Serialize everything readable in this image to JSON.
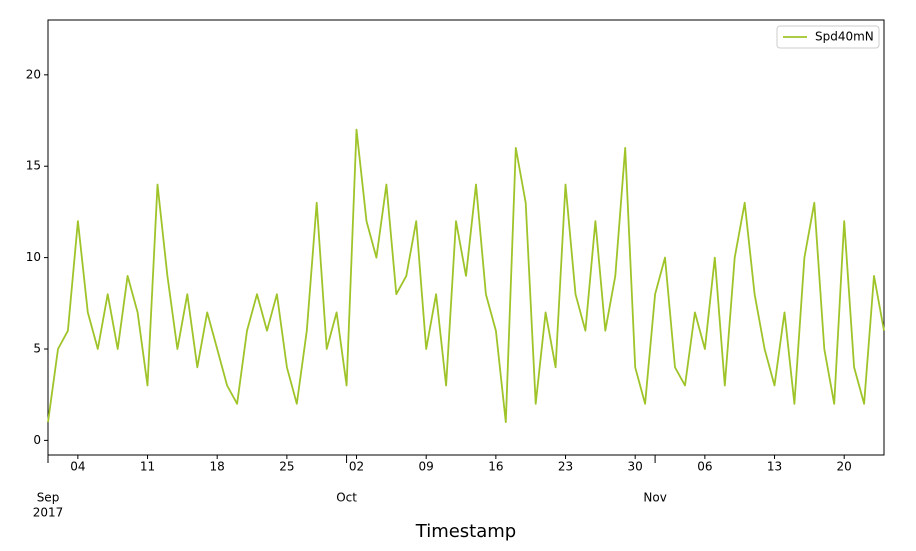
{
  "chart_data": {
    "type": "line",
    "xlabel": "Timestamp",
    "x": [
      "2017-09-01",
      "2017-09-02",
      "2017-09-03",
      "2017-09-04",
      "2017-09-05",
      "2017-09-06",
      "2017-09-07",
      "2017-09-08",
      "2017-09-09",
      "2017-09-10",
      "2017-09-11",
      "2017-09-12",
      "2017-09-13",
      "2017-09-14",
      "2017-09-15",
      "2017-09-16",
      "2017-09-17",
      "2017-09-18",
      "2017-09-19",
      "2017-09-20",
      "2017-09-21",
      "2017-09-22",
      "2017-09-23",
      "2017-09-24",
      "2017-09-25",
      "2017-09-26",
      "2017-09-27",
      "2017-09-28",
      "2017-09-29",
      "2017-09-30",
      "2017-10-01",
      "2017-10-02",
      "2017-10-03",
      "2017-10-04",
      "2017-10-05",
      "2017-10-06",
      "2017-10-07",
      "2017-10-08",
      "2017-10-09",
      "2017-10-10",
      "2017-10-11",
      "2017-10-12",
      "2017-10-13",
      "2017-10-14",
      "2017-10-15",
      "2017-10-16",
      "2017-10-17",
      "2017-10-18",
      "2017-10-19",
      "2017-10-20",
      "2017-10-21",
      "2017-10-22",
      "2017-10-23",
      "2017-10-24",
      "2017-10-25",
      "2017-10-26",
      "2017-10-27",
      "2017-10-28",
      "2017-10-29",
      "2017-10-30",
      "2017-10-31",
      "2017-11-01",
      "2017-11-02",
      "2017-11-03",
      "2017-11-04",
      "2017-11-05",
      "2017-11-06",
      "2017-11-07",
      "2017-11-08",
      "2017-11-09",
      "2017-11-10",
      "2017-11-11",
      "2017-11-12",
      "2017-11-13",
      "2017-11-14",
      "2017-11-15",
      "2017-11-16",
      "2017-11-17",
      "2017-11-18",
      "2017-11-19",
      "2017-11-20",
      "2017-11-21",
      "2017-11-22",
      "2017-11-23",
      "2017-11-24"
    ],
    "series": [
      {
        "name": "Spd40mN",
        "color": "#9fc42a",
        "values": [
          1,
          5,
          6,
          12,
          7,
          5,
          8,
          5,
          9,
          7,
          3,
          14,
          9,
          5,
          8,
          4,
          7,
          5,
          3,
          2,
          6,
          8,
          6,
          8,
          4,
          2,
          6,
          13,
          5,
          7,
          3,
          17,
          12,
          10,
          14,
          8,
          9,
          12,
          5,
          8,
          3,
          12,
          9,
          14,
          8,
          6,
          1,
          16,
          13,
          2,
          7,
          4,
          14,
          8,
          6,
          12,
          6,
          9,
          16,
          4,
          2,
          8,
          10,
          4,
          3,
          7,
          5,
          10,
          3,
          10,
          13,
          8,
          5,
          3,
          7,
          2,
          10,
          13,
          5,
          2,
          12,
          4,
          2,
          9,
          6
        ]
      }
    ],
    "xlim": [
      "2017-09-01",
      "2017-11-24"
    ],
    "ylim": [
      -0.8,
      23.0
    ],
    "yticks": [
      0,
      5,
      10,
      15,
      20
    ],
    "xticks": [
      {
        "value": "2017-09-04",
        "label": "04"
      },
      {
        "value": "2017-09-11",
        "label": "11"
      },
      {
        "value": "2017-09-18",
        "label": "18"
      },
      {
        "value": "2017-09-25",
        "label": "25"
      },
      {
        "value": "2017-10-02",
        "label": "02"
      },
      {
        "value": "2017-10-09",
        "label": "09"
      },
      {
        "value": "2017-10-16",
        "label": "16"
      },
      {
        "value": "2017-10-23",
        "label": "23"
      },
      {
        "value": "2017-10-30",
        "label": "30"
      },
      {
        "value": "2017-11-06",
        "label": "06"
      },
      {
        "value": "2017-11-13",
        "label": "13"
      },
      {
        "value": "2017-11-20",
        "label": "20"
      }
    ],
    "xticks_month": [
      {
        "value": "2017-09-01",
        "label": "Sep",
        "year": "2017"
      },
      {
        "value": "2017-10-01",
        "label": "Oct"
      },
      {
        "value": "2017-11-01",
        "label": "Nov"
      }
    ],
    "legend": "upper right",
    "grid": false
  }
}
